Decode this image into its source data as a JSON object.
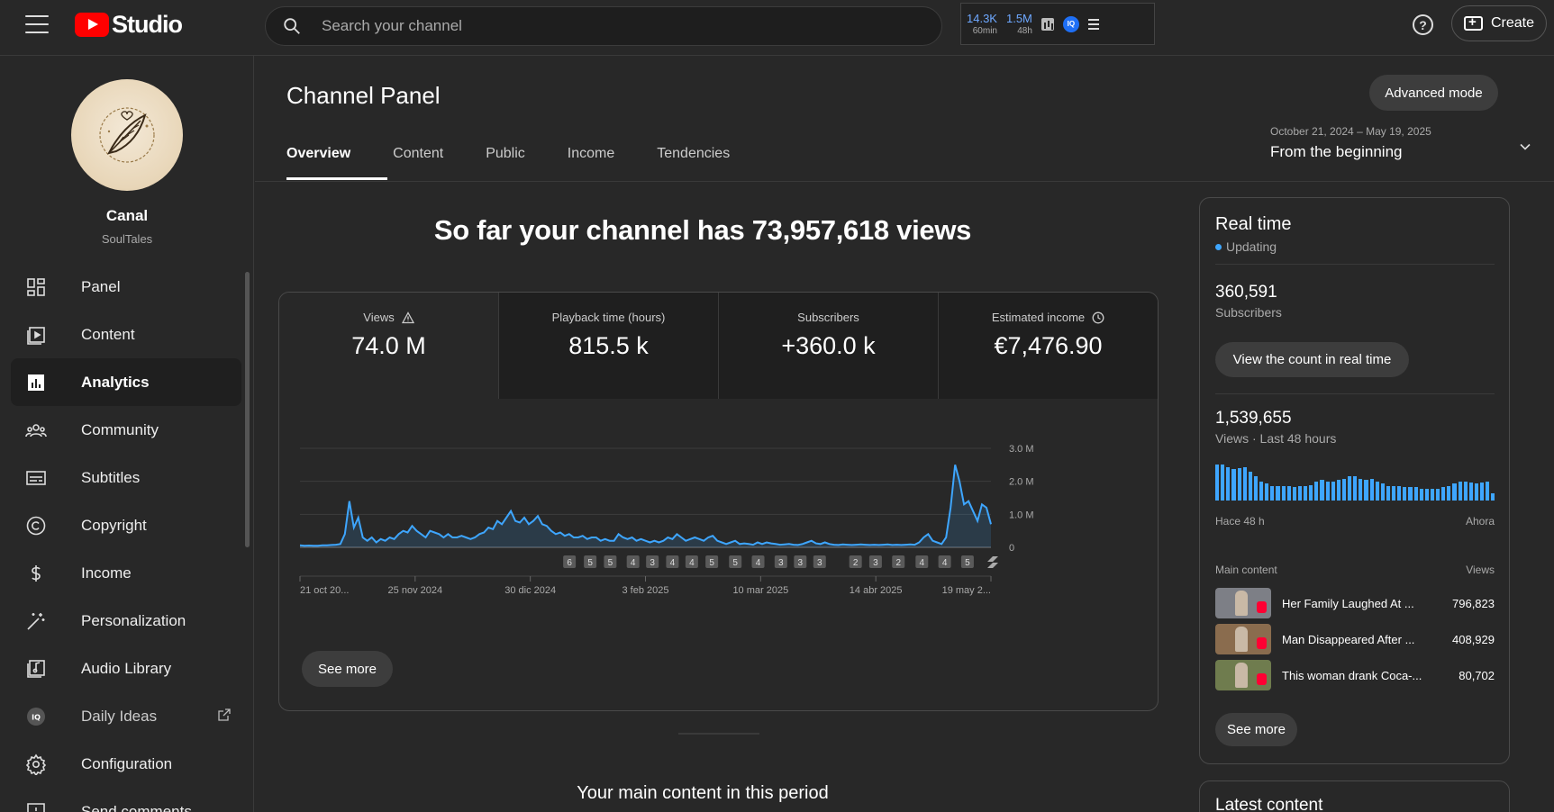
{
  "header": {
    "logo_text": "Studio",
    "search_placeholder": "Search your channel",
    "ext_stats": [
      {
        "value": "14.3K",
        "label": "60min"
      },
      {
        "value": "1.5M",
        "label": "48h"
      }
    ],
    "ext_badge": "IQ",
    "help_glyph": "?",
    "create_label": "Create"
  },
  "channel": {
    "name": "Canal",
    "handle": "SoulTales"
  },
  "sidebar": {
    "items": [
      {
        "label": "Panel",
        "icon": "dashboard-icon"
      },
      {
        "label": "Content",
        "icon": "content-icon"
      },
      {
        "label": "Analytics",
        "icon": "analytics-icon",
        "active": true
      },
      {
        "label": "Community",
        "icon": "community-icon"
      },
      {
        "label": "Subtitles",
        "icon": "subtitles-icon"
      },
      {
        "label": "Copyright",
        "icon": "copyright-icon"
      },
      {
        "label": "Income",
        "icon": "dollar-icon"
      },
      {
        "label": "Personalization",
        "icon": "magic-wand-icon"
      },
      {
        "label": "Audio Library",
        "icon": "audio-library-icon"
      },
      {
        "label": "Daily Ideas",
        "icon": "iq-icon",
        "external": true
      },
      {
        "label": "Configuration",
        "icon": "gear-icon"
      },
      {
        "label": "Send comments",
        "icon": "feedback-icon"
      }
    ]
  },
  "page": {
    "title": "Channel Panel",
    "advanced_mode_label": "Advanced mode",
    "tabs": [
      "Overview",
      "Content",
      "Public",
      "Income",
      "Tendencies"
    ],
    "date_range": {
      "sub": "October 21, 2024 – May 19, 2025",
      "value": "From the beginning"
    },
    "headline": "So far your channel has 73,957,618 views",
    "metrics": [
      {
        "label": "Views",
        "value": "74.0 M",
        "icon": "warning-icon"
      },
      {
        "label": "Playback time (hours)",
        "value": "815.5 k"
      },
      {
        "label": "Subscribers",
        "value": "+360.0 k"
      },
      {
        "label": "Estimated income",
        "value": "€7,476.90",
        "icon": "clock-icon"
      }
    ],
    "see_more_label": "See more",
    "main_content_title": "Your main content in this period"
  },
  "realtime": {
    "title": "Real time",
    "status": "Updating",
    "subscribers_value": "360,591",
    "subscribers_label": "Subscribers",
    "count_button": "View the count in real time",
    "views_value": "1,539,655",
    "views_label": "Views · Last 48 hours",
    "bar_values": [
      30,
      30,
      28,
      26,
      27,
      28,
      24,
      20,
      16,
      14,
      12,
      12,
      12,
      12,
      11,
      12,
      12,
      13,
      16,
      17,
      16,
      16,
      17,
      18,
      20,
      20,
      18,
      17,
      18,
      16,
      14,
      12,
      12,
      12,
      11,
      11,
      11,
      10,
      10,
      10,
      10,
      11,
      12,
      14,
      16,
      16,
      15,
      14,
      15,
      16,
      6
    ],
    "axis_start": "Hace 48 h",
    "axis_end": "Ahora",
    "list_head_left": "Main content",
    "list_head_right": "Views",
    "top_content": [
      {
        "title": "Her Family Laughed At ...",
        "views": "796,823",
        "thumb": "#7d7f86"
      },
      {
        "title": "Man Disappeared After ...",
        "views": "408,929",
        "thumb": "#8a6c4e"
      },
      {
        "title": "This woman drank Coca-...",
        "views": "80,702",
        "thumb": "#6f7c4e"
      }
    ],
    "see_more_label": "See more"
  },
  "latest": {
    "title": "Latest content"
  },
  "colors": {
    "accent": "#3ea6ff",
    "brand_red": "#ff0000",
    "background": "#282828"
  },
  "chart_data": {
    "type": "area",
    "ylabel": "",
    "ylim": [
      0,
      3000000
    ],
    "y_ticks": [
      "3.0 M",
      "2.0 M",
      "1.0 M",
      "0"
    ],
    "x_ticks": [
      "21 oct 20...",
      "25 nov 2024",
      "30 dic 2024",
      "3 feb 2025",
      "10 mar 2025",
      "14 abr 2025",
      "19 may 2..."
    ],
    "grid": true,
    "series": [
      {
        "values": [
          60000,
          50000,
          55000,
          45000,
          50000,
          60000,
          60000,
          70000,
          80000,
          100000,
          400000,
          1400000,
          600000,
          900000,
          300000,
          200000,
          300000,
          150000,
          250000,
          200000,
          300000,
          250000,
          400000,
          500000,
          450000,
          650000,
          500000,
          400000,
          300000,
          500000,
          450000,
          400000,
          300000,
          400000,
          300000,
          300000,
          350000,
          300000,
          250000,
          300000,
          400000,
          450000,
          600000,
          550000,
          800000,
          700000,
          900000,
          1100000,
          800000,
          750000,
          900000,
          700000,
          800000,
          950000,
          700000,
          650000,
          500000,
          400000,
          450000,
          350000,
          400000,
          300000,
          300000,
          350000,
          250000,
          300000,
          300000,
          200000,
          250000,
          200000,
          200000,
          400000,
          300000,
          250000,
          300000,
          200000,
          250000,
          200000,
          150000,
          200000,
          150000,
          200000,
          300000,
          250000,
          400000,
          300000,
          200000,
          250000,
          300000,
          250000,
          200000,
          300000,
          350000,
          200000,
          150000,
          100000,
          150000,
          200000,
          100000,
          120000,
          100000,
          80000,
          150000,
          100000,
          150000,
          120000,
          100000,
          80000,
          90000,
          100000,
          80000,
          70000,
          100000,
          150000,
          200000,
          120000,
          100000,
          150000,
          100000,
          80000,
          70000,
          90000,
          80000,
          70000,
          80000,
          90000,
          80000,
          70000,
          80000,
          70000,
          80000,
          90000,
          70000,
          80000,
          70000,
          80000,
          90000,
          80000,
          150000,
          300000,
          400000,
          200000,
          150000,
          100000,
          300000,
          1200000,
          2500000,
          2000000,
          1300000,
          1400000,
          1100000,
          800000,
          1300000,
          1200000,
          700000
        ],
        "color": "#3ea6ff"
      }
    ],
    "markers": [
      {
        "label": "6",
        "pos": 0.39
      },
      {
        "label": "5",
        "pos": 0.42
      },
      {
        "label": "5",
        "pos": 0.449
      },
      {
        "label": "4",
        "pos": 0.482
      },
      {
        "label": "3",
        "pos": 0.51
      },
      {
        "label": "4",
        "pos": 0.539
      },
      {
        "label": "4",
        "pos": 0.567
      },
      {
        "label": "5",
        "pos": 0.596
      },
      {
        "label": "5",
        "pos": 0.63
      },
      {
        "label": "4",
        "pos": 0.663
      },
      {
        "label": "3",
        "pos": 0.696
      },
      {
        "label": "3",
        "pos": 0.724
      },
      {
        "label": "3",
        "pos": 0.752
      },
      {
        "label": "2",
        "pos": 0.804
      },
      {
        "label": "3",
        "pos": 0.833
      },
      {
        "label": "2",
        "pos": 0.866
      },
      {
        "label": "4",
        "pos": 0.9
      },
      {
        "label": "4",
        "pos": 0.933
      },
      {
        "label": "5",
        "pos": 0.966
      }
    ]
  }
}
